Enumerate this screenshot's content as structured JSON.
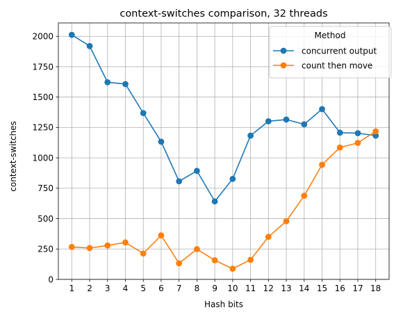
{
  "chart_data": {
    "type": "line",
    "title": "context-switches comparison, 32 threads",
    "xlabel": "Hash bits",
    "ylabel": "context-switches",
    "x": [
      1,
      2,
      3,
      4,
      5,
      6,
      7,
      8,
      9,
      10,
      11,
      12,
      13,
      14,
      15,
      16,
      17,
      18
    ],
    "xlim": [
      0.25,
      18.75
    ],
    "ylim": [
      0,
      2110
    ],
    "yticks": [
      0,
      250,
      500,
      750,
      1000,
      1250,
      1500,
      1750,
      2000
    ],
    "grid": true,
    "legend": {
      "title": "Method",
      "position": "top-right"
    },
    "series": [
      {
        "name": "concurrent output",
        "color": "#1f77b4",
        "values": [
          2012,
          1920,
          1622,
          1607,
          1368,
          1133,
          807,
          893,
          642,
          827,
          1183,
          1301,
          1315,
          1276,
          1401,
          1207,
          1203,
          1183
        ]
      },
      {
        "name": "count then move",
        "color": "#ff7f0e",
        "values": [
          267,
          258,
          279,
          304,
          213,
          362,
          132,
          249,
          157,
          88,
          161,
          350,
          479,
          688,
          943,
          1085,
          1123,
          1218
        ]
      }
    ]
  }
}
